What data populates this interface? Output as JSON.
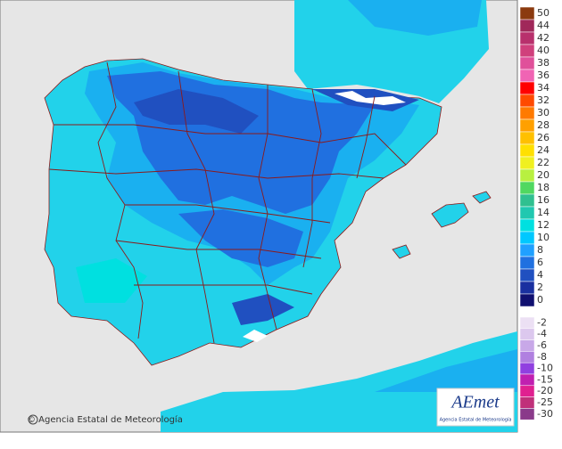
{
  "credit": "© Agencia Estatal de Meteorología",
  "logo": {
    "name": "AEmet",
    "subtitle": "Agencia Estatal de Meteorología"
  },
  "legend": {
    "positive": [
      {
        "label": 50,
        "color": "#8b3a0f"
      },
      {
        "label": 44,
        "color": "#a0285a"
      },
      {
        "label": 42,
        "color": "#b8306c"
      },
      {
        "label": 40,
        "color": "#d0407c"
      },
      {
        "label": 38,
        "color": "#e0509a"
      },
      {
        "label": 36,
        "color": "#f064b4"
      },
      {
        "label": 34,
        "color": "#ff0000"
      },
      {
        "label": 32,
        "color": "#ff4a00"
      },
      {
        "label": 30,
        "color": "#ff7a00"
      },
      {
        "label": 28,
        "color": "#ffa000"
      },
      {
        "label": 26,
        "color": "#ffc000"
      },
      {
        "label": 24,
        "color": "#ffe000"
      },
      {
        "label": 22,
        "color": "#f0f020"
      },
      {
        "label": 20,
        "color": "#b8f040"
      },
      {
        "label": 18,
        "color": "#50d860"
      },
      {
        "label": 16,
        "color": "#30c090"
      },
      {
        "label": 14,
        "color": "#20c8b0"
      },
      {
        "label": 12,
        "color": "#00e0e0"
      },
      {
        "label": 10,
        "color": "#00c8ff"
      },
      {
        "label": 8,
        "color": "#20a0ff"
      },
      {
        "label": 6,
        "color": "#2070e0"
      },
      {
        "label": 4,
        "color": "#2050c0"
      },
      {
        "label": 2,
        "color": "#1a30a0"
      },
      {
        "label": 0,
        "color": "#101070"
      }
    ],
    "negative": [
      {
        "label": -2,
        "color": "#ece0f4"
      },
      {
        "label": -4,
        "color": "#dcc8ee"
      },
      {
        "label": -6,
        "color": "#c8a8e8"
      },
      {
        "label": -8,
        "color": "#b080e0"
      },
      {
        "label": -10,
        "color": "#9040e0"
      },
      {
        "label": -15,
        "color": "#c020b0"
      },
      {
        "label": -20,
        "color": "#e02090"
      },
      {
        "label": -25,
        "color": "#c0307a"
      },
      {
        "label": -30,
        "color": "#8a3a8a"
      }
    ]
  }
}
